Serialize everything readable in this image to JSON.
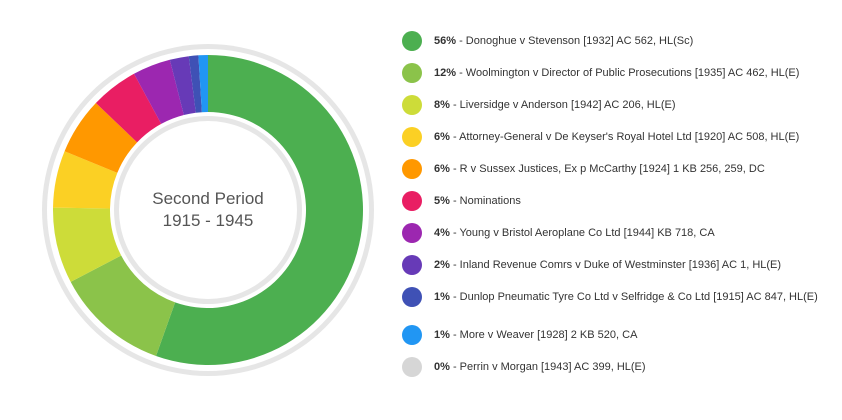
{
  "center": {
    "line1": "Second Period",
    "line2": "1915 - 1945"
  },
  "chart_data": {
    "type": "pie",
    "donut": true,
    "slices": [
      {
        "pct_label": "56%",
        "value": 56,
        "label": "- Donoghue v Stevenson [1932] AC 562, HL(Sc)",
        "color": "#4caf50"
      },
      {
        "pct_label": "12%",
        "value": 12,
        "label": "- Woolmington v Director of Public Prosecutions [1935] AC 462, HL(E)",
        "color": "#8bc34a"
      },
      {
        "pct_label": "8%",
        "value": 8,
        "label": "- Liversidge v Anderson [1942] AC 206, HL(E)",
        "color": "#cddc39"
      },
      {
        "pct_label": "6%",
        "value": 6,
        "label": "- Attorney-General v De Keyser's Royal Hotel Ltd [1920] AC 508, HL(E)",
        "color": "#fbd024"
      },
      {
        "pct_label": "6%",
        "value": 6,
        "label": "- R v Sussex Justices, Ex p McCarthy [1924] 1 KB 256, 259, DC",
        "color": "#ff9800"
      },
      {
        "pct_label": "5%",
        "value": 5,
        "label": "- Nominations",
        "color": "#e91e63"
      },
      {
        "pct_label": "4%",
        "value": 4,
        "label": "- Young v Bristol Aeroplane Co Ltd [1944] KB 718, CA",
        "color": "#9c27b0"
      },
      {
        "pct_label": "2%",
        "value": 2,
        "label": "- Inland Revenue Comrs v Duke of Westminster [1936] AC 1, HL(E)",
        "color": "#673ab7"
      },
      {
        "pct_label": "1%",
        "value": 1,
        "label": "- Dunlop Pneumatic Tyre Co Ltd v Selfridge & Co Ltd [1915] AC 847, HL(E)",
        "color": "#3f51b5"
      },
      {
        "pct_label": "1%",
        "value": 1,
        "label": "- More v Weaver [1928] 2 KB 520, CA",
        "color": "#2196f3"
      },
      {
        "pct_label": "0%",
        "value": 0,
        "label": "- Perrin v Morgan [1943] AC 399, HL(E)",
        "color": "#d6d6d6"
      }
    ]
  }
}
